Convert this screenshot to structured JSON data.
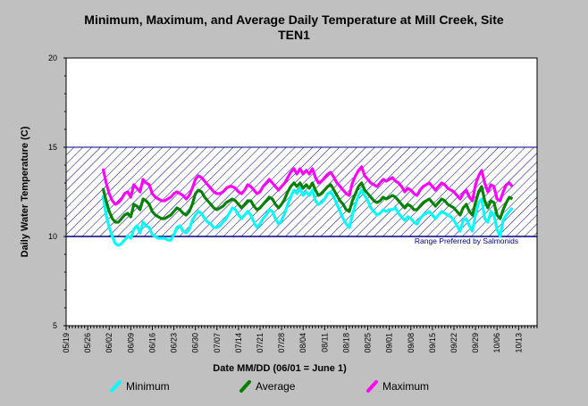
{
  "chart_data": {
    "type": "line",
    "title_line1": "Minimum, Maximum, and Average Daily Temperature at Mill Creek, Site",
    "title_line2": "TEN1",
    "xlabel": "Date MM/DD (06/01 = June 1)",
    "ylabel": "Daily Water Temperature (C)",
    "ylim": [
      5,
      20
    ],
    "yticks": [
      5,
      10,
      15,
      20
    ],
    "xlim_days_from_0519": [
      0,
      153
    ],
    "xtick_labels": [
      "05/19",
      "05/26",
      "06/02",
      "06/09",
      "06/16",
      "06/23",
      "06/30",
      "07/07",
      "07/14",
      "07/21",
      "07/28",
      "08/04",
      "08/11",
      "08/18",
      "08/25",
      "09/01",
      "09/08",
      "09/15",
      "09/22",
      "09/29",
      "10/06",
      "10/13"
    ],
    "preferred_range": {
      "label": "Range Preferred by Salmonids",
      "low": 10,
      "high": 15
    },
    "legend_placement": "bottom",
    "grid": false,
    "start_date": "05/31",
    "series": [
      {
        "name": "Minimum",
        "color": "#00ffff",
        "values": [
          12.3,
          11.2,
          10.5,
          10.0,
          9.6,
          9.5,
          9.6,
          9.8,
          10.0,
          9.9,
          10.4,
          10.6,
          10.2,
          10.8,
          10.6,
          10.5,
          10.1,
          10.0,
          9.9,
          9.9,
          9.9,
          9.8,
          9.8,
          10.1,
          10.5,
          10.6,
          10.3,
          10.2,
          10.4,
          10.9,
          11.2,
          11.4,
          11.3,
          11.0,
          10.8,
          10.7,
          10.5,
          10.5,
          10.6,
          10.8,
          11.0,
          11.3,
          11.6,
          11.5,
          11.2,
          11.0,
          11.2,
          11.4,
          11.2,
          10.8,
          10.5,
          10.7,
          11.0,
          11.2,
          11.5,
          11.4,
          11.0,
          10.7,
          10.9,
          11.3,
          11.8,
          12.2,
          12.6,
          12.4,
          12.7,
          12.3,
          12.5,
          12.3,
          12.6,
          12.0,
          11.8,
          11.9,
          12.1,
          12.4,
          12.5,
          12.2,
          11.8,
          11.4,
          11.0,
          10.7,
          10.5,
          11.2,
          11.8,
          12.3,
          12.6,
          12.3,
          12.0,
          11.6,
          11.4,
          11.2,
          11.3,
          11.5,
          11.4,
          11.5,
          11.5,
          11.6,
          11.3,
          11.1,
          10.9,
          11.1,
          11.0,
          10.8,
          10.7,
          11.0,
          11.2,
          11.3,
          11.4,
          11.2,
          11.0,
          11.2,
          11.4,
          11.3,
          11.2,
          11.1,
          10.9,
          10.6,
          10.3,
          10.9,
          11.0,
          10.6,
          10.3,
          11.2,
          11.9,
          12.1,
          11.0,
          10.8,
          11.4,
          11.2,
          10.4,
          10.0,
          10.9,
          11.2,
          11.4,
          11.6
        ]
      },
      {
        "name": "Average",
        "color": "#008000",
        "values": [
          12.7,
          12.0,
          11.4,
          11.0,
          10.8,
          10.8,
          11.0,
          11.2,
          11.3,
          11.1,
          11.8,
          11.7,
          11.5,
          12.1,
          12.0,
          11.8,
          11.4,
          11.2,
          11.1,
          11.0,
          11.0,
          11.1,
          11.2,
          11.4,
          11.6,
          11.5,
          11.3,
          11.2,
          11.4,
          11.8,
          12.4,
          12.6,
          12.5,
          12.2,
          12.0,
          11.8,
          11.6,
          11.5,
          11.6,
          11.7,
          11.9,
          12.0,
          12.1,
          12.0,
          11.8,
          11.6,
          11.8,
          12.0,
          12.0,
          11.7,
          11.5,
          11.6,
          11.8,
          12.0,
          12.2,
          12.1,
          11.8,
          11.6,
          11.8,
          12.1,
          12.5,
          12.8,
          13.0,
          12.8,
          13.0,
          12.7,
          12.9,
          12.7,
          13.0,
          12.6,
          12.3,
          12.4,
          12.6,
          12.8,
          12.9,
          12.6,
          12.3,
          12.0,
          11.8,
          11.5,
          11.4,
          12.0,
          12.4,
          12.8,
          13.0,
          12.6,
          12.4,
          12.2,
          12.0,
          11.9,
          12.0,
          12.2,
          12.1,
          12.2,
          12.3,
          12.2,
          12.0,
          11.8,
          11.6,
          11.8,
          11.7,
          11.5,
          11.5,
          11.7,
          11.9,
          12.0,
          12.1,
          11.9,
          11.7,
          11.9,
          12.1,
          12.0,
          11.8,
          11.7,
          11.6,
          11.4,
          11.2,
          11.6,
          11.8,
          11.4,
          11.2,
          11.9,
          12.5,
          12.8,
          12.0,
          11.6,
          12.0,
          11.9,
          11.2,
          11.0,
          11.5,
          11.9,
          12.2,
          12.1
        ]
      },
      {
        "name": "Maximum",
        "color": "#ff00ff",
        "values": [
          13.8,
          13.0,
          12.4,
          12.0,
          11.8,
          11.9,
          12.1,
          12.4,
          12.5,
          12.2,
          12.9,
          12.7,
          12.5,
          13.2,
          13.0,
          12.9,
          12.4,
          12.2,
          12.1,
          12.0,
          12.0,
          12.1,
          12.2,
          12.4,
          12.5,
          12.4,
          12.3,
          12.1,
          12.3,
          12.7,
          13.2,
          13.4,
          13.3,
          13.1,
          12.9,
          12.7,
          12.5,
          12.4,
          12.4,
          12.5,
          12.7,
          12.8,
          12.8,
          12.7,
          12.5,
          12.4,
          12.6,
          12.9,
          12.8,
          12.6,
          12.4,
          12.5,
          12.8,
          13.0,
          13.2,
          13.0,
          12.8,
          12.6,
          12.8,
          13.0,
          13.3,
          13.6,
          13.8,
          13.5,
          13.8,
          13.5,
          13.7,
          13.5,
          13.8,
          13.3,
          13.0,
          13.1,
          13.3,
          13.5,
          13.6,
          13.3,
          13.0,
          12.8,
          12.6,
          12.4,
          12.3,
          13.0,
          13.4,
          13.7,
          13.9,
          13.4,
          13.2,
          13.0,
          12.9,
          12.8,
          13.0,
          13.2,
          13.1,
          13.2,
          13.3,
          13.1,
          13.0,
          12.8,
          12.5,
          12.7,
          12.6,
          12.4,
          12.3,
          12.6,
          12.8,
          12.9,
          13.0,
          12.8,
          12.6,
          12.8,
          13.0,
          12.9,
          12.7,
          12.6,
          12.5,
          12.3,
          12.1,
          12.4,
          12.6,
          12.2,
          12.0,
          12.9,
          13.4,
          13.7,
          13.0,
          12.5,
          12.9,
          12.8,
          12.1,
          12.0,
          12.5,
          12.9,
          13.0,
          12.8
        ]
      }
    ]
  }
}
